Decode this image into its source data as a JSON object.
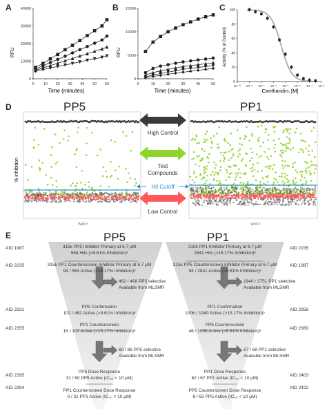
{
  "panels": {
    "A": "A",
    "B": "B",
    "C": "C",
    "D": "D",
    "E": "E"
  },
  "chart_data": [
    {
      "panel": "A",
      "type": "line",
      "ylabel": "RFU",
      "xlabel": "Time (minutes)",
      "xlim": [
        0,
        60
      ],
      "ylim": [
        0,
        40000
      ],
      "xticks": [
        "0",
        "10",
        "20",
        "30",
        "40",
        "50",
        "60"
      ],
      "yticks": [
        "0",
        "10000",
        "20000",
        "30000",
        "40000"
      ],
      "x": [
        2,
        8,
        14,
        20,
        26,
        32,
        38,
        44,
        50,
        56,
        60
      ],
      "series": [
        {
          "marker": "square",
          "values": [
            6500,
            8700,
            11300,
            13800,
            16500,
            19000,
            21700,
            24500,
            27300,
            30000,
            33500
          ]
        },
        {
          "marker": "circle",
          "values": [
            5600,
            7300,
            9200,
            11000,
            12800,
            14700,
            16500,
            18300,
            20200,
            22000,
            24200
          ]
        },
        {
          "marker": "triangle",
          "values": [
            4800,
            6200,
            7500,
            8800,
            10200,
            11500,
            12900,
            14200,
            15600,
            16900,
            18000
          ]
        },
        {
          "marker": "tri-down",
          "values": [
            4300,
            5200,
            6100,
            7000,
            7800,
            8700,
            9600,
            10500,
            11300,
            12200,
            13000
          ]
        }
      ]
    },
    {
      "panel": "B",
      "type": "line",
      "ylabel": "RFU",
      "xlabel": "Time (minutes)",
      "xlim": [
        0,
        50
      ],
      "ylim": [
        0,
        15000
      ],
      "xticks": [
        "0",
        "10",
        "20",
        "30",
        "40",
        "50"
      ],
      "yticks": [
        "0",
        "5000",
        "10000",
        "15000"
      ],
      "x": [
        5,
        10,
        15,
        20,
        25,
        30,
        35,
        40,
        45,
        50
      ],
      "series": [
        {
          "marker": "square",
          "values": [
            5800,
            7800,
            9000,
            10000,
            10800,
            11500,
            12100,
            12700,
            13200,
            13600
          ]
        },
        {
          "marker": "circle",
          "values": [
            1300,
            2200,
            2700,
            3000,
            3300,
            3600,
            3800,
            4000,
            4200,
            4400
          ]
        },
        {
          "marker": "triangle",
          "values": [
            800,
            1300,
            1700,
            2000,
            2300,
            2600,
            2800,
            3000,
            3200,
            3400
          ]
        },
        {
          "marker": "tri-down",
          "values": [
            400,
            800,
            1100,
            1400,
            1700,
            2000,
            2200,
            2400,
            2600,
            2800
          ]
        },
        {
          "marker": "diamond",
          "values": [
            200,
            500,
            700,
            950,
            1200,
            1400,
            1600,
            1800,
            2000,
            2200
          ]
        }
      ]
    },
    {
      "panel": "C",
      "type": "scatter",
      "ylabel": "Activity (% of Control)",
      "xlabel": "Cantharidin; [M]",
      "xscale": "log",
      "ylim": [
        0,
        100
      ],
      "yticks": [
        "0",
        "20",
        "40",
        "60",
        "80",
        "100"
      ],
      "xticks": [
        "10⁻¹⁰",
        "10⁻⁹",
        "10⁻⁸",
        "10⁻⁷",
        "10⁻⁶",
        "10⁻⁵",
        "10⁻⁴",
        "10⁻³"
      ],
      "x_log10": [
        -9,
        -8.5,
        -8,
        -7.5,
        -7,
        -6.5,
        -6,
        -5.5,
        -5,
        -4.5,
        -4,
        -3.5
      ],
      "values": [
        100,
        97,
        94,
        88,
        76,
        58,
        38,
        20,
        9,
        4,
        2,
        1
      ]
    },
    {
      "panel": "D-left",
      "type": "scatter",
      "title": "PP5",
      "ylabel": "% inhibition",
      "xlabel": "Well #"
    },
    {
      "panel": "D-right",
      "type": "scatter",
      "title": "PP1",
      "xlabel": "Well #"
    }
  ],
  "legend": {
    "high_control": "High Control",
    "test_compounds_l1": "Test",
    "test_compounds_l2": "Compounds",
    "hit_cutoff": "Hit Cutoff",
    "low_control": "Low Control"
  },
  "colors": {
    "high": "#3a3a3a",
    "test": "#8fd42a",
    "hit": "#2f8fd8",
    "low": "#ff5a5a"
  },
  "funnel": {
    "left_title": "PP5",
    "right_title": "PP1",
    "left_aids": [
      "AID 1987",
      "AID 2235",
      "AID 2331",
      "AID 2355",
      "AID 2395",
      "AID 2394"
    ],
    "right_aids": [
      "AID 2235",
      "AID 1987",
      "AID 2358",
      "AID 2360",
      "AID 2403",
      "AID 2422"
    ],
    "left": {
      "s1a": "315k  PP5 Inhibitor Primary at 6.7 μM",
      "s1b": "564 Hits (>9.61% Inhibition)ᵃ",
      "s2a": "315k PP1 Counterscreen Inhibitor Primary at 6.7 μM",
      "s2b": "94 / 564 Active (>15.17% Inhibition)ᵇ",
      "side1a": "462 / 468 PP5 selective",
      "side1b": "Available from MLSMR",
      "s3a": "PP5 Confirmation",
      "s3b": "102 / 462 Active (>9.61% Inhibition)ᵃ",
      "s4a": "PP1 Counterscreen",
      "s4b": "15 / 102 Active (>15.17% Inhibition)ᵇ",
      "side2": "60 / 86 PP5 selective",
      "side2b": "Available from MLSMR",
      "s5a": "PP5 Dose Response",
      "s5b": "31 / 60 PP5 Active (IC₅₀ < 10 μM)",
      "s6a": "PP1 Counterscreen Dose Response",
      "s6b": "0 / 31 PP1 Active (IC₅₀ < 10 μM)"
    },
    "right": {
      "s1a": "315k PP1 Inhibitor Primary at 6.7 μM",
      "s1b": "2841 Hits (>15.17% Inhibition)ᵇ",
      "s2a": "315k PP5 Counterscreen Inhibitor Primary at 6.7 μM",
      "s2b": "94 / 2841 Active (>9.61% Inhibition)ᵃ",
      "side1a": "1940 / 2751 PP1 selective",
      "side1b": "Available from MLSMR",
      "s3a": "PP1 Confirmation",
      "s3b": "1006 / 1940 Active (>15.17% Inhibition)ᵇ",
      "s4a": "PP5 Counterscreen",
      "s4b": "46 / 1006 Active (>9.61% Inhibition)ᵃ",
      "side2": "67 / 68 PP1 selective",
      "side2b": "Available from MLSMR",
      "s5a": "PP1 Dose Response",
      "s5b": "62 / 67 PP1 Active (IC₅₀ < 10 μM)",
      "s6a": "PP5 Counterscreen Dose Response",
      "s6b": "8 / 62 PP5 Active (IC₅₀ < 10 μM)"
    }
  }
}
